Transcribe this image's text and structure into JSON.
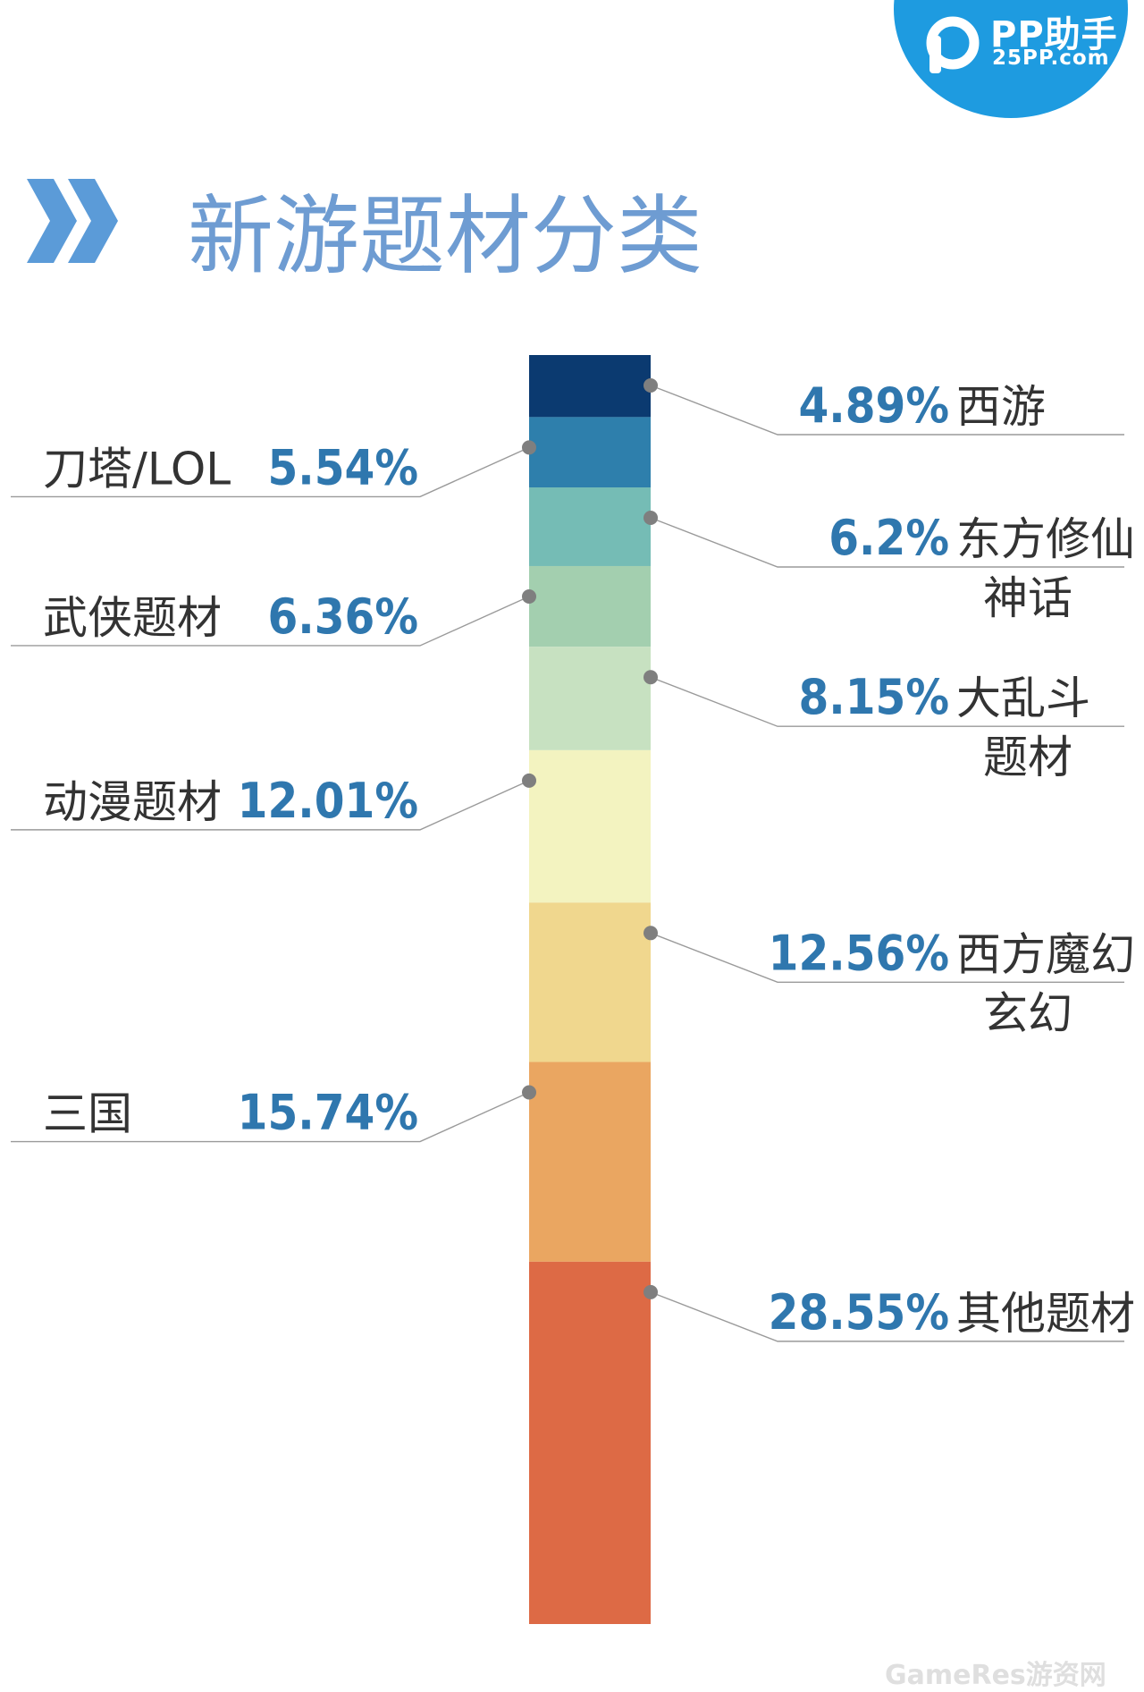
{
  "logo": {
    "name": "PP助手",
    "url": "25PP.com",
    "icon": "p-logo-icon"
  },
  "page": {
    "title": "新游题材分类",
    "title_icon": "double-chevron-icon"
  },
  "watermark": "GameRes游资网",
  "chart_data": {
    "type": "bar",
    "subtype": "stacked-100",
    "categories": [
      "西游",
      "刀塔/LOL",
      "东方修仙神话",
      "武侠题材",
      "大乱斗题材",
      "动漫题材",
      "西方魔幻玄幻",
      "三国",
      "其他题材"
    ],
    "values": [
      4.89,
      5.54,
      6.2,
      6.36,
      8.15,
      12.01,
      12.56,
      15.74,
      28.55
    ],
    "display_values": [
      "4.89%",
      "5.54%",
      "6.2%",
      "6.36%",
      "8.15%",
      "12.01%",
      "12.56%",
      "15.74%",
      "28.55%"
    ],
    "display_names": [
      [
        "西游"
      ],
      [
        "刀塔/LOL"
      ],
      [
        "东方修仙",
        "神话"
      ],
      [
        "武侠题材"
      ],
      [
        "大乱斗",
        "题材"
      ],
      [
        "动漫题材"
      ],
      [
        "西方魔幻",
        "玄幻"
      ],
      [
        "三国"
      ],
      [
        "其他题材"
      ]
    ],
    "label_side": [
      "right",
      "left",
      "right",
      "left",
      "right",
      "left",
      "right",
      "left",
      "right"
    ],
    "colors": [
      "#0b3a70",
      "#2e7fac",
      "#75bcb5",
      "#a3cfaf",
      "#c7e1c1",
      "#f3f3c0",
      "#f0d78e",
      "#eaa661",
      "#dd6a45"
    ],
    "unit": "%",
    "legend": "none",
    "grid": false
  }
}
